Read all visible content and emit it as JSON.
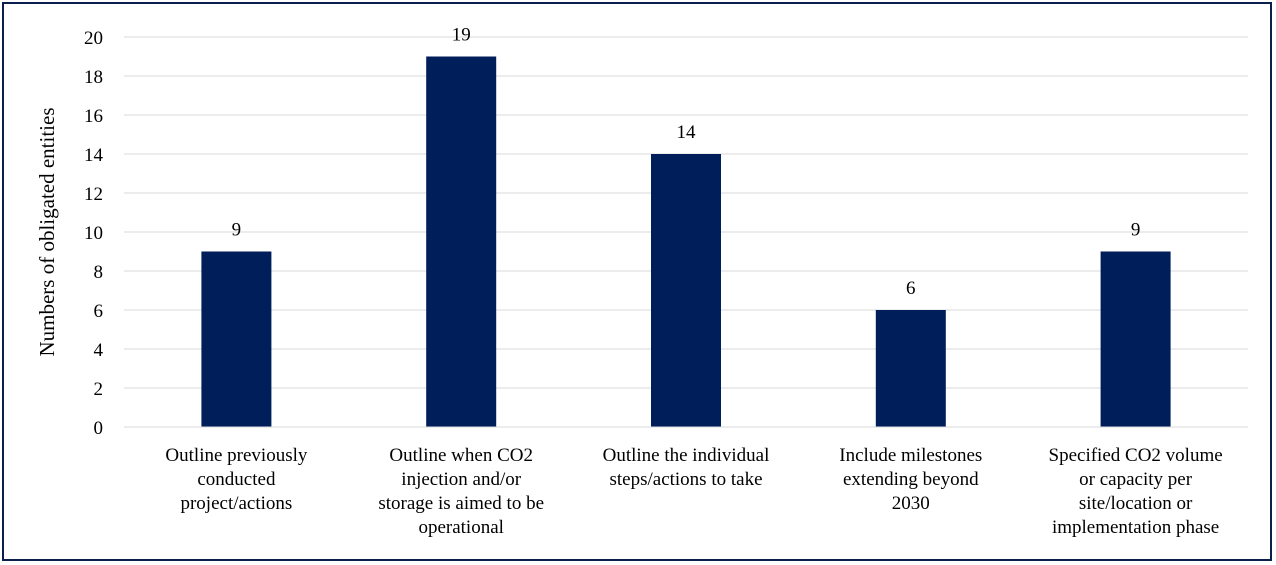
{
  "chart_data": {
    "type": "bar",
    "categories": [
      [
        "Outline previously",
        "conducted",
        "project/actions"
      ],
      [
        "Outline when CO2",
        "injection and/or",
        "storage is aimed to be",
        "operational"
      ],
      [
        "Outline the individual",
        "steps/actions to take"
      ],
      [
        "Include milestones",
        "extending beyond",
        "2030"
      ],
      [
        "Specified CO2 volume",
        "or capacity per",
        "site/location or",
        "implementation phase"
      ]
    ],
    "values": [
      9,
      19,
      14,
      6,
      9
    ],
    "ylabel": "Numbers of obligated entities",
    "xlabel": "",
    "ylim": [
      0,
      20
    ],
    "yticks": [
      0,
      2,
      4,
      6,
      8,
      10,
      12,
      14,
      16,
      18,
      20
    ],
    "grid": true,
    "bar_color": "#001e5a",
    "grid_color": "#d9d9d9"
  }
}
